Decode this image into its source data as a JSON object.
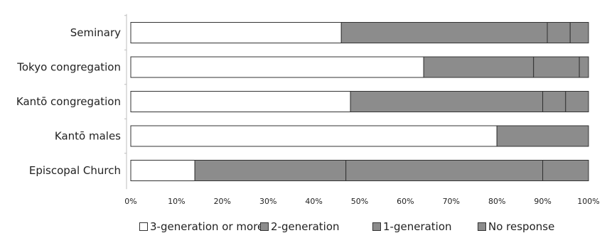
{
  "chart_data": {
    "type": "bar",
    "orientation": "horizontal",
    "stacked": true,
    "normalized": true,
    "categories": [
      "Seminary",
      "Tokyo congregation",
      "Kantō congregation",
      "Kantō males",
      "Episcopal Church"
    ],
    "series": [
      {
        "name": "3-generation or more",
        "color": "#ffffff",
        "values": [
          46,
          64,
          48,
          80,
          14
        ]
      },
      {
        "name": "2-generation",
        "color": "#8c8c8c",
        "values": [
          45,
          24,
          42,
          20,
          33
        ]
      },
      {
        "name": "1-generation",
        "color": "#8c8c8c",
        "values": [
          5,
          10,
          5,
          0,
          43
        ]
      },
      {
        "name": "No response",
        "color": "#8c8c8c",
        "values": [
          4,
          2,
          5,
          0,
          10
        ]
      }
    ],
    "xlim": [
      0,
      100
    ],
    "xticks": [
      "0%",
      "10%",
      "20%",
      "30%",
      "40%",
      "50%",
      "60%",
      "70%",
      "80%",
      "90%",
      "100%"
    ],
    "title": "",
    "xlabel": "",
    "ylabel": "",
    "grid": false,
    "legend_position": "bottom"
  }
}
